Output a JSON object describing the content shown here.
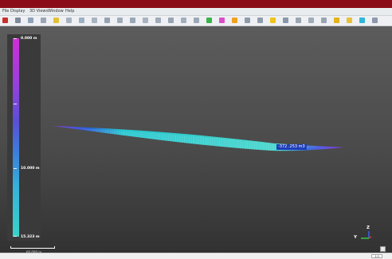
{
  "menu": {
    "items": [
      "File",
      "Display",
      "3D Views",
      "Window",
      "Help"
    ]
  },
  "toolbar": {
    "buttons": [
      {
        "icon": "open-icon",
        "color": "#c9302c"
      },
      {
        "icon": "save-icon",
        "color": "#7d8a99"
      },
      {
        "icon": "layer-icon",
        "color": "#8fa2b8"
      },
      {
        "icon": "filter-icon",
        "color": "#9aa6b5"
      },
      {
        "icon": "yellow-tool-icon",
        "color": "#e2c234"
      },
      {
        "icon": "grid-icon",
        "color": "#a7b2bf"
      },
      {
        "icon": "cloud-icon",
        "color": "#9db0c4"
      },
      {
        "icon": "mesh-icon",
        "color": "#a9b4c2"
      },
      {
        "icon": "measure-icon",
        "color": "#96a3b3"
      },
      {
        "icon": "compare-icon",
        "color": "#a0acba"
      },
      {
        "icon": "segment-icon",
        "color": "#9aa7b6"
      },
      {
        "icon": "scalar-icon",
        "color": "#a8b3c0"
      },
      {
        "icon": "normal-icon",
        "color": "#9fabb9"
      },
      {
        "icon": "volume-icon",
        "color": "#98a5b4"
      },
      {
        "icon": "picking-icon",
        "color": "#a3aebb"
      },
      {
        "icon": "plugin-icon",
        "color": "#9ca8b6"
      },
      {
        "icon": "green-tool-icon",
        "color": "#3bb44a"
      },
      {
        "icon": "color-tool-icon",
        "color": "#d94fc8"
      },
      {
        "icon": "orange-tool-icon",
        "color": "#f0a21c"
      },
      {
        "icon": "view-icon",
        "color": "#8e9bab"
      },
      {
        "icon": "camera-icon",
        "color": "#909daf"
      },
      {
        "icon": "light-icon",
        "color": "#f0c419"
      },
      {
        "icon": "zoom-icon",
        "color": "#8a97a8"
      },
      {
        "icon": "perspective-icon",
        "color": "#9aa6b4"
      },
      {
        "icon": "front-view-icon",
        "color": "#a1acb9"
      },
      {
        "icon": "top-view-icon",
        "color": "#99a5b3"
      },
      {
        "icon": "gold-tool-icon",
        "color": "#e5b31a"
      },
      {
        "icon": "yellow-folder-icon",
        "color": "#e8c13a"
      },
      {
        "icon": "cyan-tool-icon",
        "color": "#2fb6d8"
      },
      {
        "icon": "display-icon",
        "color": "#8d9aab"
      }
    ]
  },
  "colorbar": {
    "top_label": "0.000 m",
    "mid_label": "10.000 m",
    "bottom_label": "15.323 m",
    "colors": [
      "#cf2ed6",
      "#9b3fdc",
      "#5a4fd6",
      "#3b7fdb",
      "#37b1d8",
      "#3ad3c8"
    ]
  },
  "cloud": {
    "volume_label": "-372 .253 m3",
    "colors": [
      "#8a3fe0",
      "#2a5fd6",
      "#26c7cf",
      "#46d6cc",
      "#8a35e0"
    ]
  },
  "scale": {
    "label": "60.000 m"
  },
  "axes": {
    "z_label": "Z",
    "y_label": "Y"
  },
  "status": {
    "field": "1.0"
  }
}
